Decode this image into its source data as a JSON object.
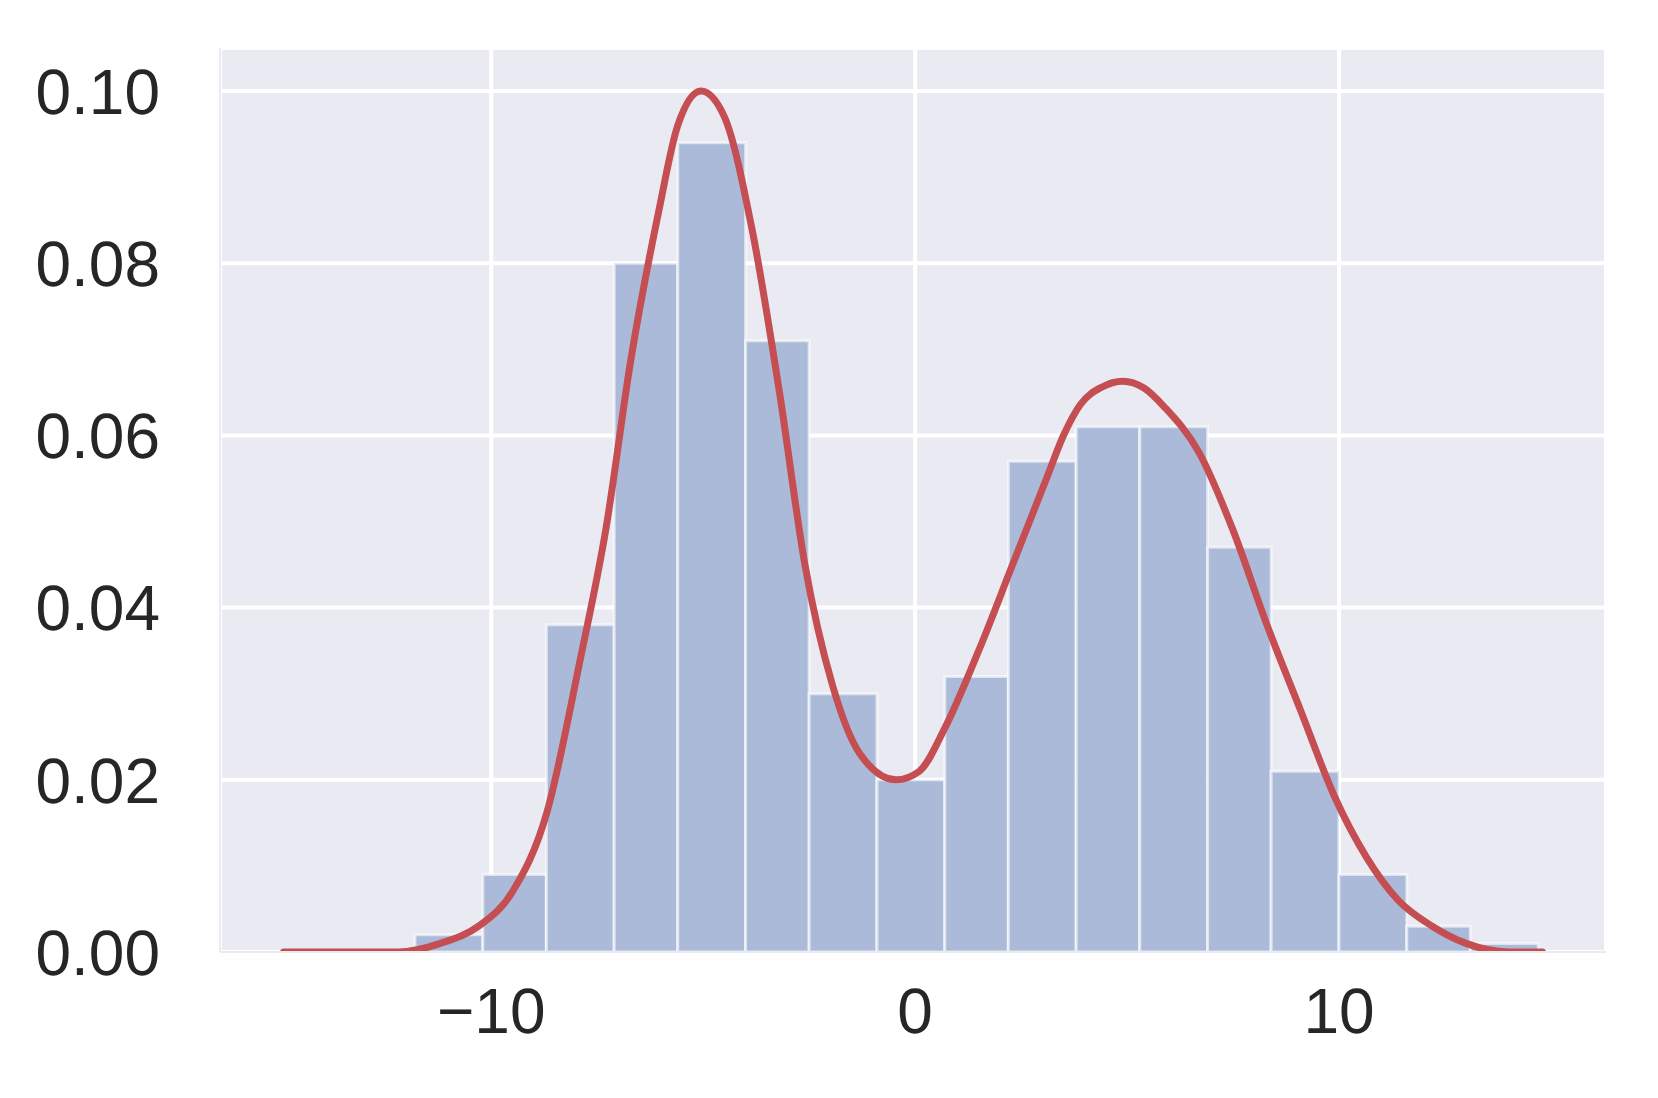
{
  "chart_data": {
    "type": "histogram",
    "bins": [
      -11.8,
      -10.2,
      -8.7,
      -7.1,
      -5.6,
      -4.0,
      -2.5,
      -0.9,
      0.7,
      2.2,
      3.8,
      5.3,
      6.9,
      8.4,
      10.0,
      11.6,
      13.1,
      14.7
    ],
    "series": [
      {
        "color": "#abbad8",
        "values": [
          0.002,
          0.009,
          0.038,
          0.08,
          0.094,
          0.071,
          0.03,
          0.02,
          0.032,
          0.057,
          0.061,
          0.061,
          0.047,
          0.021,
          0.009,
          0.003,
          0.001
        ]
      },
      {
        "type": "line",
        "color": "#c44e52",
        "x": [
          -14.9,
          -12.2,
          -11.2,
          -10.3,
          -9.5,
          -8.7,
          -7.9,
          -7.3,
          -6.7,
          -6.05,
          -5.6,
          -5.05,
          -4.5,
          -3.85,
          -3.2,
          -2.6,
          -1.95,
          -1.3,
          -0.45,
          0.1,
          0.7,
          1.5,
          2.3,
          3.1,
          3.5,
          3.9,
          4.4,
          4.9,
          5.4,
          5.9,
          6.7,
          7.5,
          8.3,
          9.1,
          9.9,
          10.65,
          11.4,
          12.2,
          13.0,
          14.0,
          14.8
        ],
        "values": [
          0.0,
          0.0,
          0.001,
          0.003,
          0.007,
          0.016,
          0.034,
          0.049,
          0.069,
          0.086,
          0.096,
          0.1,
          0.097,
          0.084,
          0.065,
          0.045,
          0.031,
          0.023,
          0.02,
          0.021,
          0.026,
          0.035,
          0.045,
          0.055,
          0.06,
          0.0636,
          0.0656,
          0.0663,
          0.0655,
          0.0632,
          0.058,
          0.049,
          0.038,
          0.028,
          0.018,
          0.011,
          0.006,
          0.003,
          0.001,
          0.0,
          0.0
        ]
      }
    ],
    "xlim": [
      -16.4,
      16.3
    ],
    "ylim": [
      0,
      0.105
    ],
    "xticks": [
      {
        "value": -10,
        "label": "−10"
      },
      0,
      10
    ],
    "yticks": [
      {
        "value": 0,
        "label": "0.00"
      },
      {
        "value": 0.02,
        "label": "0.02"
      },
      {
        "value": 0.04,
        "label": "0.04"
      },
      {
        "value": 0.06,
        "label": "0.06"
      },
      {
        "value": 0.08,
        "label": "0.08"
      },
      {
        "value": 0.1,
        "label": "0.10"
      }
    ],
    "grid": true
  }
}
